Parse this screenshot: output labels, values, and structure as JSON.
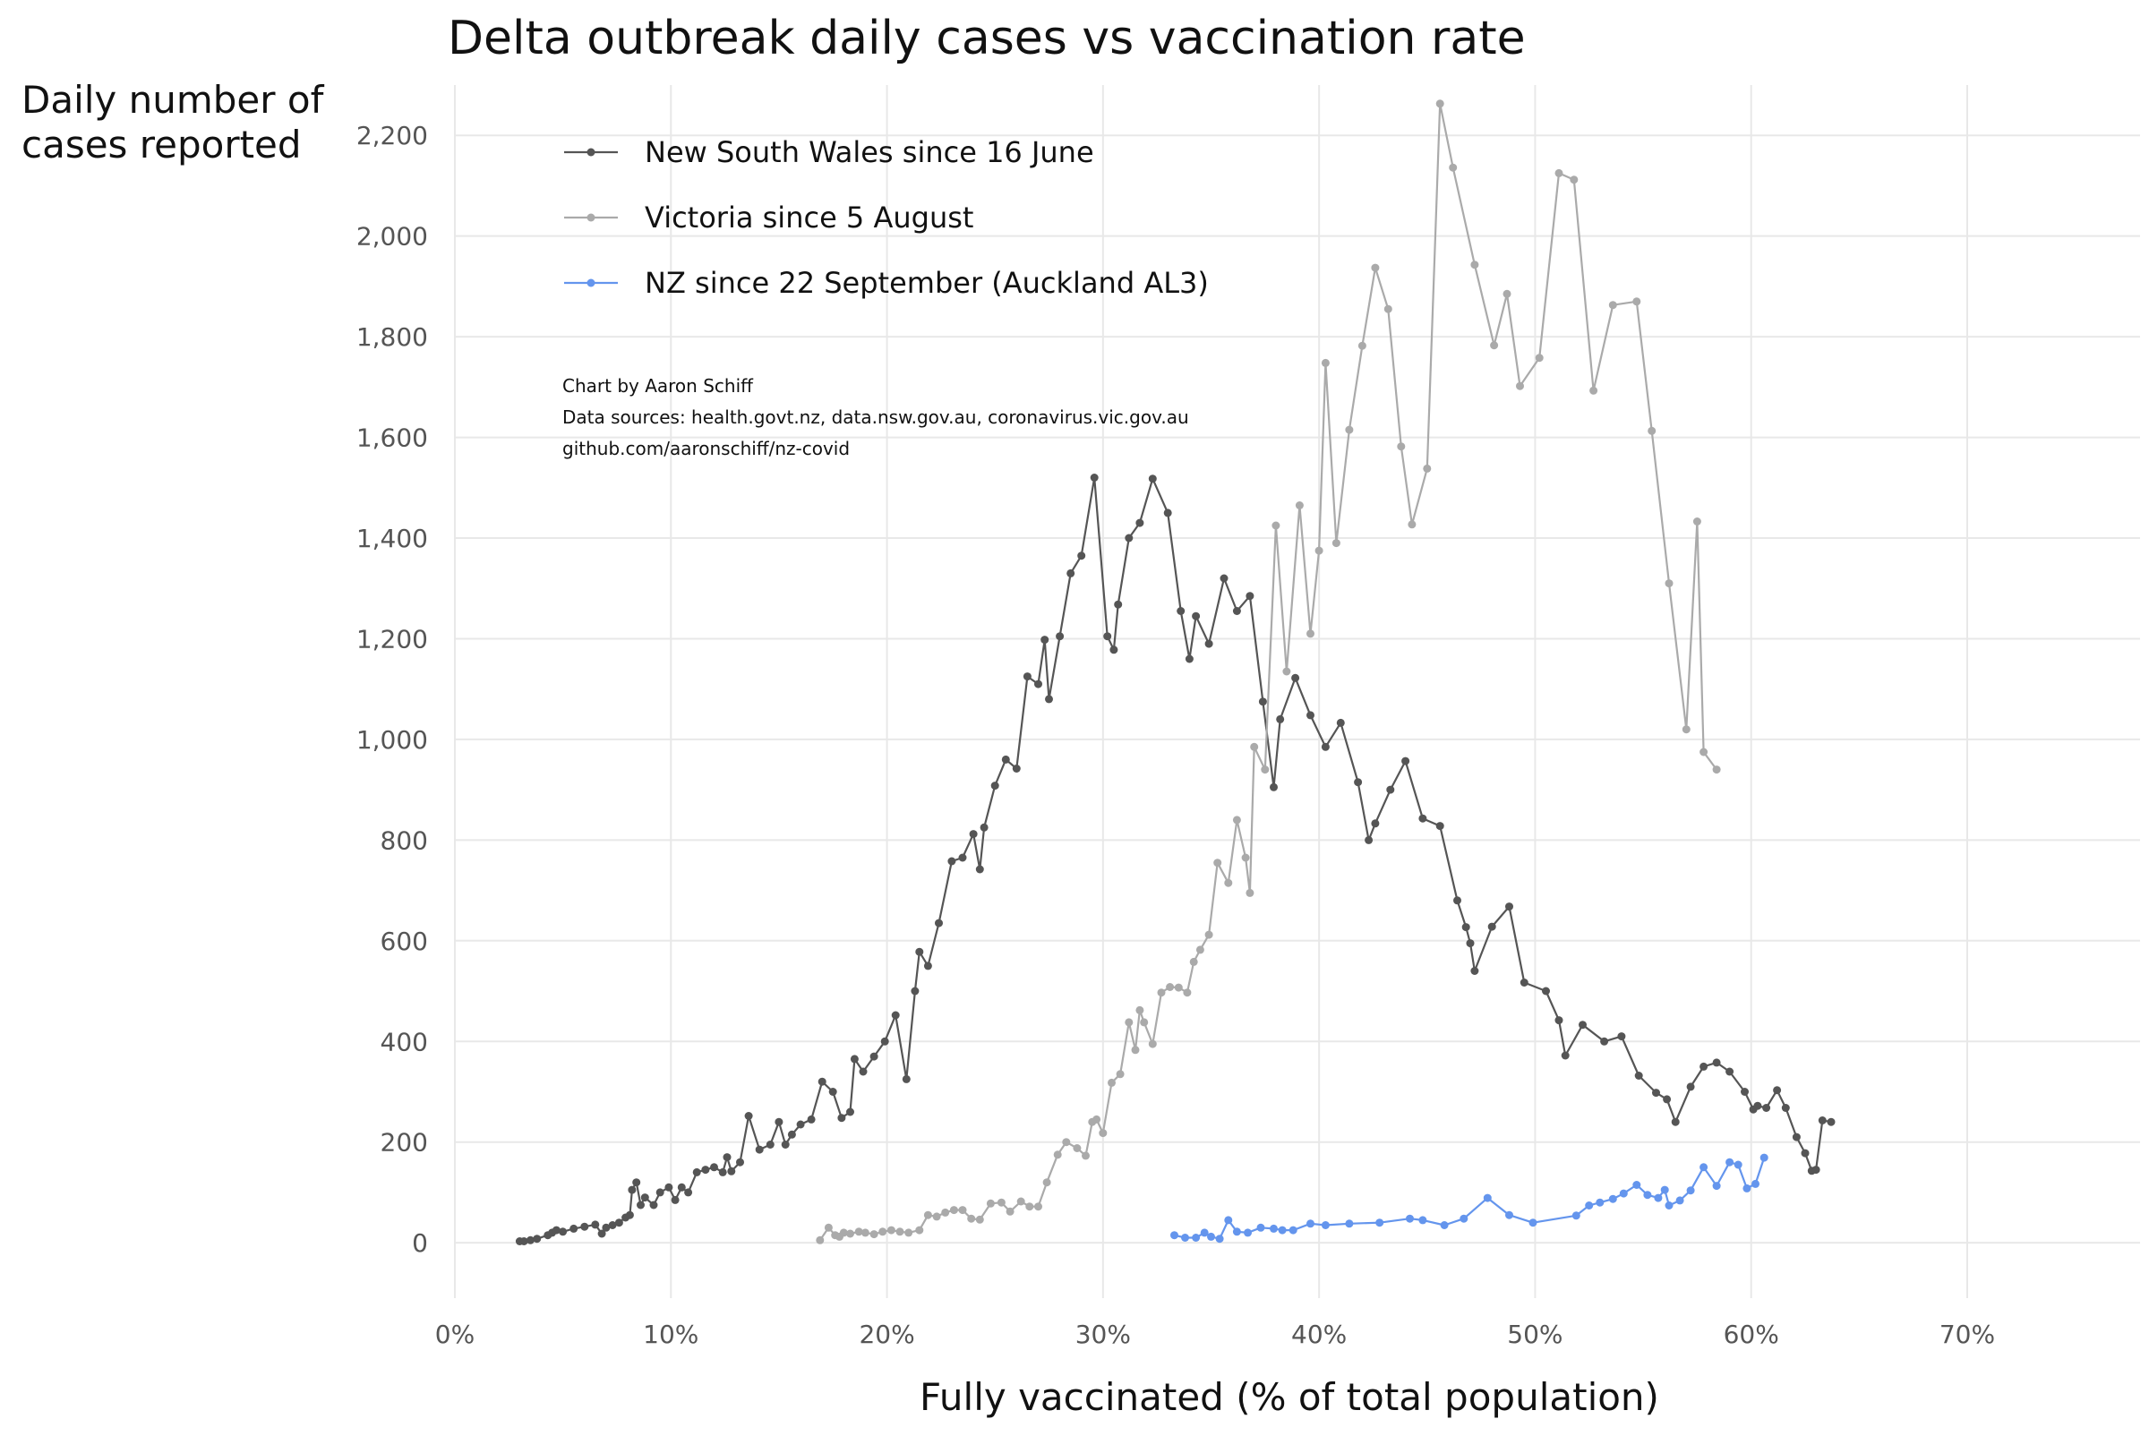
{
  "chart_data": {
    "type": "line",
    "title": "Delta outbreak daily cases vs vaccination rate",
    "xlabel": "Fully vaccinated (% of total population)",
    "ylabel_line1": "Daily number of",
    "ylabel_line2": "cases reported",
    "xlim": [
      0,
      78
    ],
    "ylim": [
      -110,
      2300
    ],
    "x_ticks": [
      0,
      10,
      20,
      30,
      40,
      50,
      60,
      70
    ],
    "x_tick_labels": [
      "0%",
      "10%",
      "20%",
      "30%",
      "40%",
      "50%",
      "60%",
      "70%"
    ],
    "y_ticks": [
      0,
      200,
      400,
      600,
      800,
      1000,
      1200,
      1400,
      1600,
      1800,
      2000,
      2200
    ],
    "y_tick_labels": [
      "0",
      "200",
      "400",
      "600",
      "800",
      "1,000",
      "1,200",
      "1,400",
      "1,600",
      "1,800",
      "2,000",
      "2,200"
    ],
    "grid": true,
    "legend_position": "top-left",
    "credits": [
      "Chart by Aaron Schiff",
      "Data sources: health.govt.nz, data.nsw.gov.au, coronavirus.vic.gov.au",
      "github.com/aaronschiff/nz-covid"
    ],
    "series": [
      {
        "name": "New South Wales since 16 June",
        "color": "#555555",
        "points": [
          [
            3.0,
            3
          ],
          [
            3.2,
            3
          ],
          [
            3.5,
            5
          ],
          [
            3.8,
            8
          ],
          [
            4.3,
            15
          ],
          [
            4.5,
            20
          ],
          [
            4.7,
            25
          ],
          [
            5.0,
            22
          ],
          [
            5.5,
            28
          ],
          [
            6.0,
            32
          ],
          [
            6.5,
            36
          ],
          [
            6.8,
            18
          ],
          [
            7.0,
            30
          ],
          [
            7.3,
            35
          ],
          [
            7.6,
            40
          ],
          [
            7.9,
            50
          ],
          [
            8.1,
            55
          ],
          [
            8.2,
            105
          ],
          [
            8.4,
            120
          ],
          [
            8.6,
            75
          ],
          [
            8.8,
            90
          ],
          [
            9.2,
            75
          ],
          [
            9.5,
            100
          ],
          [
            9.9,
            110
          ],
          [
            10.2,
            85
          ],
          [
            10.5,
            110
          ],
          [
            10.8,
            100
          ],
          [
            11.2,
            140
          ],
          [
            11.6,
            145
          ],
          [
            12.0,
            150
          ],
          [
            12.4,
            140
          ],
          [
            12.6,
            170
          ],
          [
            12.8,
            142
          ],
          [
            13.2,
            160
          ],
          [
            13.6,
            252
          ],
          [
            14.1,
            185
          ],
          [
            14.6,
            195
          ],
          [
            15.0,
            240
          ],
          [
            15.3,
            195
          ],
          [
            15.6,
            215
          ],
          [
            16.0,
            235
          ],
          [
            16.5,
            245
          ],
          [
            17.0,
            320
          ],
          [
            17.5,
            300
          ],
          [
            17.9,
            248
          ],
          [
            18.3,
            260
          ],
          [
            18.5,
            365
          ],
          [
            18.9,
            340
          ],
          [
            19.4,
            370
          ],
          [
            19.9,
            400
          ],
          [
            20.4,
            452
          ],
          [
            20.9,
            325
          ],
          [
            21.3,
            500
          ],
          [
            21.5,
            578
          ],
          [
            21.9,
            550
          ],
          [
            22.4,
            635
          ],
          [
            23.0,
            758
          ],
          [
            23.5,
            765
          ],
          [
            24.0,
            812
          ],
          [
            24.3,
            742
          ],
          [
            24.5,
            825
          ],
          [
            25.0,
            908
          ],
          [
            25.5,
            960
          ],
          [
            26.0,
            942
          ],
          [
            26.5,
            1125
          ],
          [
            27.0,
            1110
          ],
          [
            27.3,
            1198
          ],
          [
            27.5,
            1080
          ],
          [
            28.0,
            1205
          ],
          [
            28.5,
            1330
          ],
          [
            29.0,
            1365
          ],
          [
            29.6,
            1520
          ],
          [
            30.2,
            1205
          ],
          [
            30.5,
            1178
          ],
          [
            30.7,
            1268
          ],
          [
            31.2,
            1400
          ],
          [
            31.7,
            1430
          ],
          [
            32.3,
            1518
          ],
          [
            33.0,
            1450
          ],
          [
            33.6,
            1255
          ],
          [
            34.0,
            1160
          ],
          [
            34.3,
            1245
          ],
          [
            34.9,
            1190
          ],
          [
            35.6,
            1320
          ],
          [
            36.2,
            1255
          ],
          [
            36.8,
            1285
          ],
          [
            37.4,
            1075
          ],
          [
            37.9,
            905
          ],
          [
            38.2,
            1040
          ],
          [
            38.9,
            1122
          ],
          [
            39.6,
            1048
          ],
          [
            40.3,
            985
          ],
          [
            41.0,
            1033
          ],
          [
            41.8,
            915
          ],
          [
            42.3,
            800
          ],
          [
            42.6,
            833
          ],
          [
            43.3,
            900
          ],
          [
            44.0,
            957
          ],
          [
            44.8,
            843
          ],
          [
            45.6,
            828
          ],
          [
            46.4,
            680
          ],
          [
            46.8,
            627
          ],
          [
            47.0,
            595
          ],
          [
            47.2,
            540
          ],
          [
            48.0,
            628
          ],
          [
            48.8,
            668
          ],
          [
            49.5,
            517
          ],
          [
            50.5,
            500
          ],
          [
            51.1,
            442
          ],
          [
            51.4,
            372
          ],
          [
            52.2,
            433
          ],
          [
            53.2,
            400
          ],
          [
            54.0,
            410
          ],
          [
            54.8,
            332
          ],
          [
            55.6,
            298
          ],
          [
            56.1,
            285
          ],
          [
            56.5,
            240
          ],
          [
            57.2,
            310
          ],
          [
            57.8,
            350
          ],
          [
            58.4,
            358
          ],
          [
            59.0,
            340
          ],
          [
            59.7,
            300
          ],
          [
            60.1,
            265
          ],
          [
            60.3,
            272
          ],
          [
            60.7,
            268
          ],
          [
            61.2,
            303
          ],
          [
            61.6,
            268
          ],
          [
            62.1,
            210
          ],
          [
            62.5,
            178
          ],
          [
            62.8,
            143
          ],
          [
            63.0,
            145
          ],
          [
            63.3,
            243
          ],
          [
            63.7,
            240
          ]
        ]
      },
      {
        "name": "Victoria since 5 August",
        "color": "#aaaaaa",
        "points": [
          [
            16.9,
            5
          ],
          [
            17.3,
            30
          ],
          [
            17.6,
            15
          ],
          [
            17.8,
            12
          ],
          [
            18.0,
            20
          ],
          [
            18.3,
            18
          ],
          [
            18.7,
            22
          ],
          [
            19.0,
            20
          ],
          [
            19.4,
            17
          ],
          [
            19.8,
            22
          ],
          [
            20.2,
            25
          ],
          [
            20.6,
            22
          ],
          [
            21.0,
            20
          ],
          [
            21.5,
            25
          ],
          [
            21.9,
            55
          ],
          [
            22.3,
            52
          ],
          [
            22.7,
            60
          ],
          [
            23.1,
            65
          ],
          [
            23.5,
            65
          ],
          [
            23.9,
            48
          ],
          [
            24.3,
            46
          ],
          [
            24.8,
            78
          ],
          [
            25.3,
            80
          ],
          [
            25.7,
            62
          ],
          [
            26.2,
            82
          ],
          [
            26.6,
            72
          ],
          [
            27.0,
            72
          ],
          [
            27.4,
            120
          ],
          [
            27.9,
            175
          ],
          [
            28.3,
            200
          ],
          [
            28.8,
            188
          ],
          [
            29.2,
            173
          ],
          [
            29.5,
            240
          ],
          [
            29.7,
            245
          ],
          [
            30.0,
            218
          ],
          [
            30.4,
            318
          ],
          [
            30.8,
            335
          ],
          [
            31.2,
            438
          ],
          [
            31.5,
            383
          ],
          [
            31.7,
            462
          ],
          [
            31.9,
            438
          ],
          [
            32.3,
            395
          ],
          [
            32.7,
            497
          ],
          [
            33.1,
            508
          ],
          [
            33.5,
            507
          ],
          [
            33.9,
            497
          ],
          [
            34.2,
            558
          ],
          [
            34.5,
            582
          ],
          [
            34.9,
            612
          ],
          [
            35.3,
            755
          ],
          [
            35.8,
            715
          ],
          [
            36.2,
            840
          ],
          [
            36.6,
            765
          ],
          [
            36.8,
            695
          ],
          [
            37.0,
            985
          ],
          [
            37.5,
            940
          ],
          [
            38.0,
            1425
          ],
          [
            38.5,
            1135
          ],
          [
            39.1,
            1465
          ],
          [
            39.6,
            1210
          ],
          [
            40.0,
            1375
          ],
          [
            40.3,
            1748
          ],
          [
            40.8,
            1390
          ],
          [
            41.4,
            1615
          ],
          [
            42.0,
            1782
          ],
          [
            42.6,
            1937
          ],
          [
            43.2,
            1855
          ],
          [
            43.8,
            1582
          ],
          [
            44.3,
            1427
          ],
          [
            45.0,
            1538
          ],
          [
            45.6,
            2263
          ],
          [
            46.2,
            2136
          ],
          [
            47.2,
            1943
          ],
          [
            48.1,
            1783
          ],
          [
            48.7,
            1885
          ],
          [
            49.3,
            1702
          ],
          [
            50.2,
            1758
          ],
          [
            51.1,
            2125
          ],
          [
            51.8,
            2112
          ],
          [
            52.7,
            1693
          ],
          [
            53.6,
            1863
          ],
          [
            54.7,
            1870
          ],
          [
            55.4,
            1613
          ],
          [
            56.2,
            1310
          ],
          [
            57.0,
            1020
          ],
          [
            57.5,
            1433
          ],
          [
            57.8,
            975
          ],
          [
            58.4,
            940
          ]
        ]
      },
      {
        "name": "NZ since 22 September (Auckland AL3)",
        "color": "#6495ed",
        "points": [
          [
            33.3,
            15
          ],
          [
            33.8,
            10
          ],
          [
            34.3,
            10
          ],
          [
            34.7,
            20
          ],
          [
            35.0,
            12
          ],
          [
            35.4,
            8
          ],
          [
            35.8,
            45
          ],
          [
            36.2,
            22
          ],
          [
            36.7,
            20
          ],
          [
            37.3,
            30
          ],
          [
            37.9,
            28
          ],
          [
            38.3,
            25
          ],
          [
            38.8,
            25
          ],
          [
            39.6,
            38
          ],
          [
            40.3,
            35
          ],
          [
            41.4,
            38
          ],
          [
            42.8,
            40
          ],
          [
            44.2,
            48
          ],
          [
            44.8,
            45
          ],
          [
            45.8,
            35
          ],
          [
            46.7,
            48
          ],
          [
            47.8,
            89
          ],
          [
            48.8,
            55
          ],
          [
            49.9,
            40
          ],
          [
            51.9,
            54
          ],
          [
            52.5,
            74
          ],
          [
            53.0,
            80
          ],
          [
            53.6,
            87
          ],
          [
            54.1,
            98
          ],
          [
            54.7,
            115
          ],
          [
            55.2,
            95
          ],
          [
            55.7,
            89
          ],
          [
            56.0,
            105
          ],
          [
            56.2,
            74
          ],
          [
            56.7,
            84
          ],
          [
            57.2,
            104
          ],
          [
            57.8,
            150
          ],
          [
            58.4,
            113
          ],
          [
            59.0,
            160
          ],
          [
            59.4,
            155
          ],
          [
            59.8,
            108
          ],
          [
            60.2,
            117
          ],
          [
            60.6,
            169
          ]
        ]
      }
    ]
  }
}
